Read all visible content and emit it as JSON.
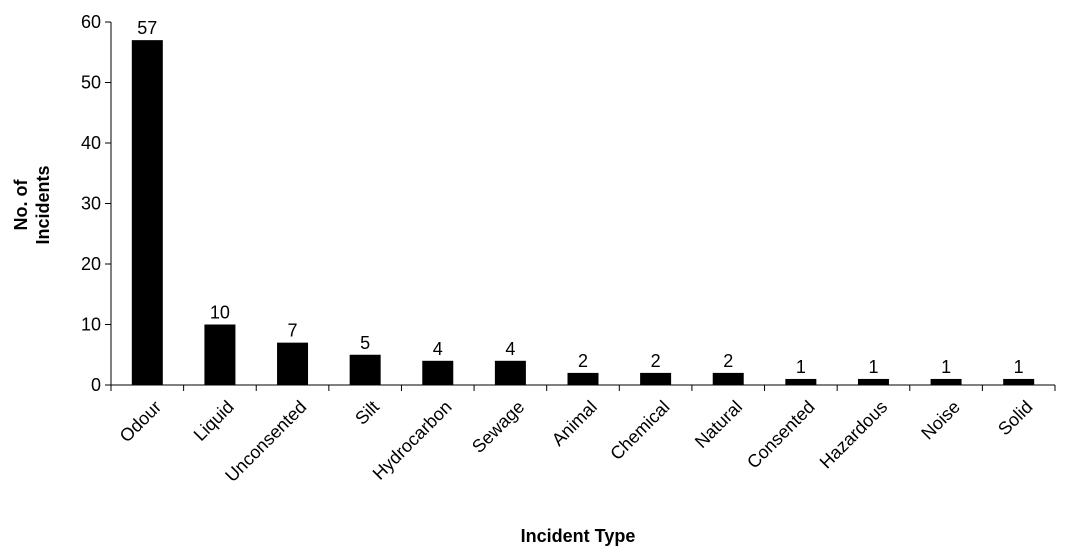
{
  "chart_data": {
    "type": "bar",
    "title": "",
    "xlabel": "Incident Type",
    "ylabel": [
      "No. of",
      "Incidents"
    ],
    "categories": [
      "Odour",
      "Liquid",
      "Unconsented",
      "Silt",
      "Hydrocarbon",
      "Sewage",
      "Animal",
      "Chemical",
      "Natural",
      "Consented",
      "Hazardous",
      "Noise",
      "Solid"
    ],
    "values": [
      57,
      10,
      7,
      5,
      4,
      4,
      2,
      2,
      2,
      1,
      1,
      1,
      1
    ],
    "ylim": [
      0,
      60
    ],
    "yticks": [
      0,
      10,
      20,
      30,
      40,
      50,
      60
    ],
    "bar_color": "#000000",
    "grid": false,
    "legend": "none",
    "data_labels": true
  }
}
